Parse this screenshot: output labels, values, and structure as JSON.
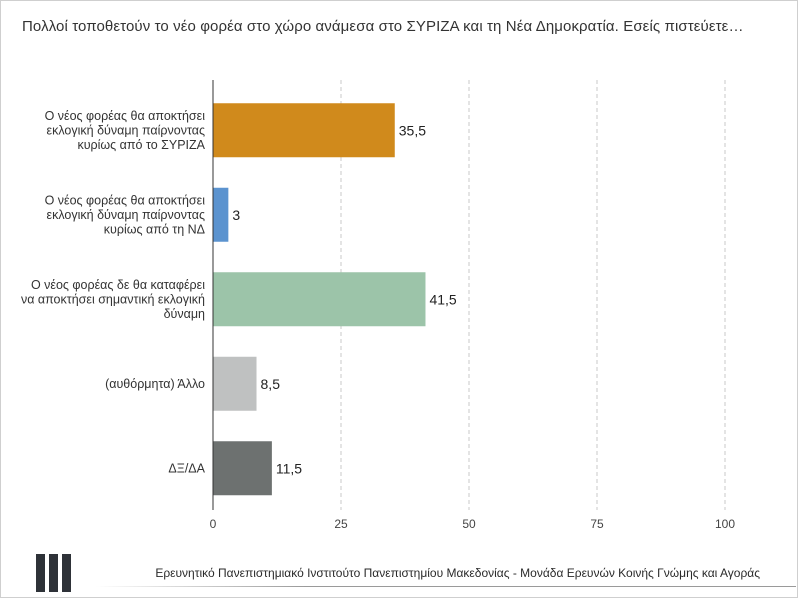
{
  "title": "Πολλοί τοποθετούν το νέο φορέα στο χώρο ανάμεσα στο ΣΥΡΙΖΑ και τη Νέα Δημοκρατία. Εσείς πιστεύετε…",
  "footer": {
    "text": "Ερευνητικό Πανεπιστημιακό Ινστιτούτο Πανεπιστημίου Μακεδονίας - Μονάδα Ερευνών Κοινής Γνώμης και Αγοράς"
  },
  "chart_data": {
    "type": "bar",
    "orientation": "horizontal",
    "title": "Πολλοί τοποθετούν το νέο φορέα στο χώρο ανάμεσα στο ΣΥΡΙΖΑ και τη Νέα Δημοκρατία. Εσείς πιστεύετε…",
    "categories": [
      [
        "Ο νέος φορέας θα αποκτήσει",
        "εκλογική δύναμη παίρνοντας",
        "κυρίως από το ΣΥΡΙΖΑ"
      ],
      [
        "Ο νέος φορέας θα αποκτήσει",
        "εκλογική δύναμη παίρνοντας",
        "κυρίως από τη ΝΔ"
      ],
      [
        "Ο νέος φορέας δε θα καταφέρει",
        "να αποκτήσει σημαντική εκλογική",
        "δύναμη"
      ],
      [
        "(αυθόρμητα) Άλλο"
      ],
      [
        "ΔΞ/ΔΑ"
      ]
    ],
    "values": [
      35.5,
      3,
      41.5,
      8.5,
      11.5
    ],
    "value_labels": [
      "35,5",
      "3",
      "41,5",
      "8,5",
      "11,5"
    ],
    "colors": [
      "#d08a1c",
      "#5b93cf",
      "#9cc4a9",
      "#bfc1c1",
      "#6d7170"
    ],
    "xlim": [
      0,
      100
    ],
    "xticks": [
      0,
      25,
      50,
      75,
      100
    ],
    "xlabel": "",
    "ylabel": "",
    "grid": "vertical dashed"
  }
}
